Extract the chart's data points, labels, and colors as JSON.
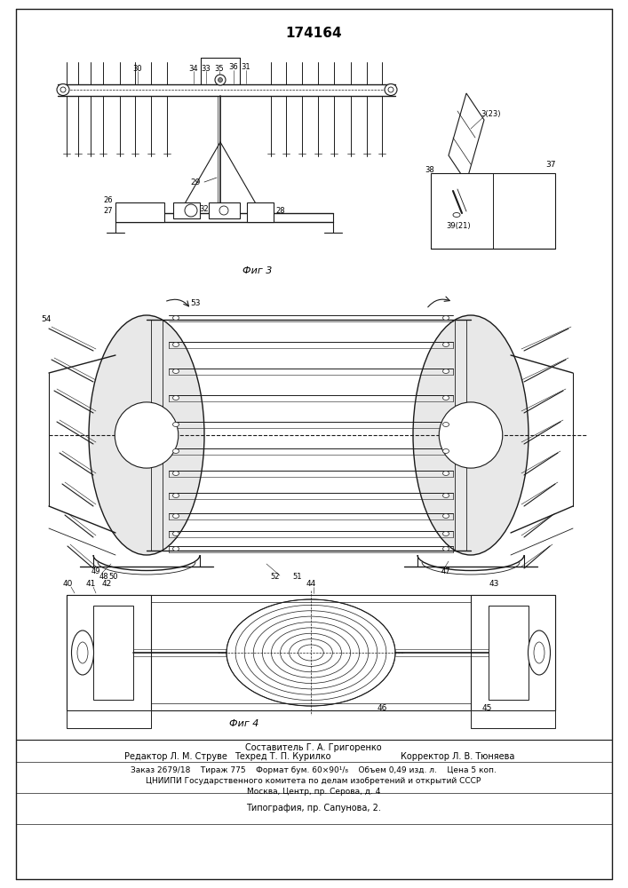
{
  "patent_number": "174164",
  "background_color": "#ffffff",
  "drawing_color": "#1a1a1a",
  "fig3_label": "Фиг 3",
  "fig4_mid_label": "",
  "fig4_bot_label": "Фиг 4",
  "footer_line1": "Составитель Г. А. Григоренко",
  "footer_line2_left": "Редактор Л. М. Струве",
  "footer_line2_mid": "Техред Т. П. Курилко",
  "footer_line2_right": "Корректор Л. В. Тюняева",
  "footer_line3": "Заказ 2679/18    Тираж 775    Формат бум. 60×90¹/₈    Объем 0,49 изд. л.    Цена 5 коп.",
  "footer_line4": "ЦНИИПИ Государственного комитета по делам изобретений и открытий СССР",
  "footer_line5": "Москва, Центр, пр. Серова, д. 4",
  "footer_line6": "Типография, пр. Сапунова, 2.",
  "page_width": 7.07,
  "page_height": 10.0
}
